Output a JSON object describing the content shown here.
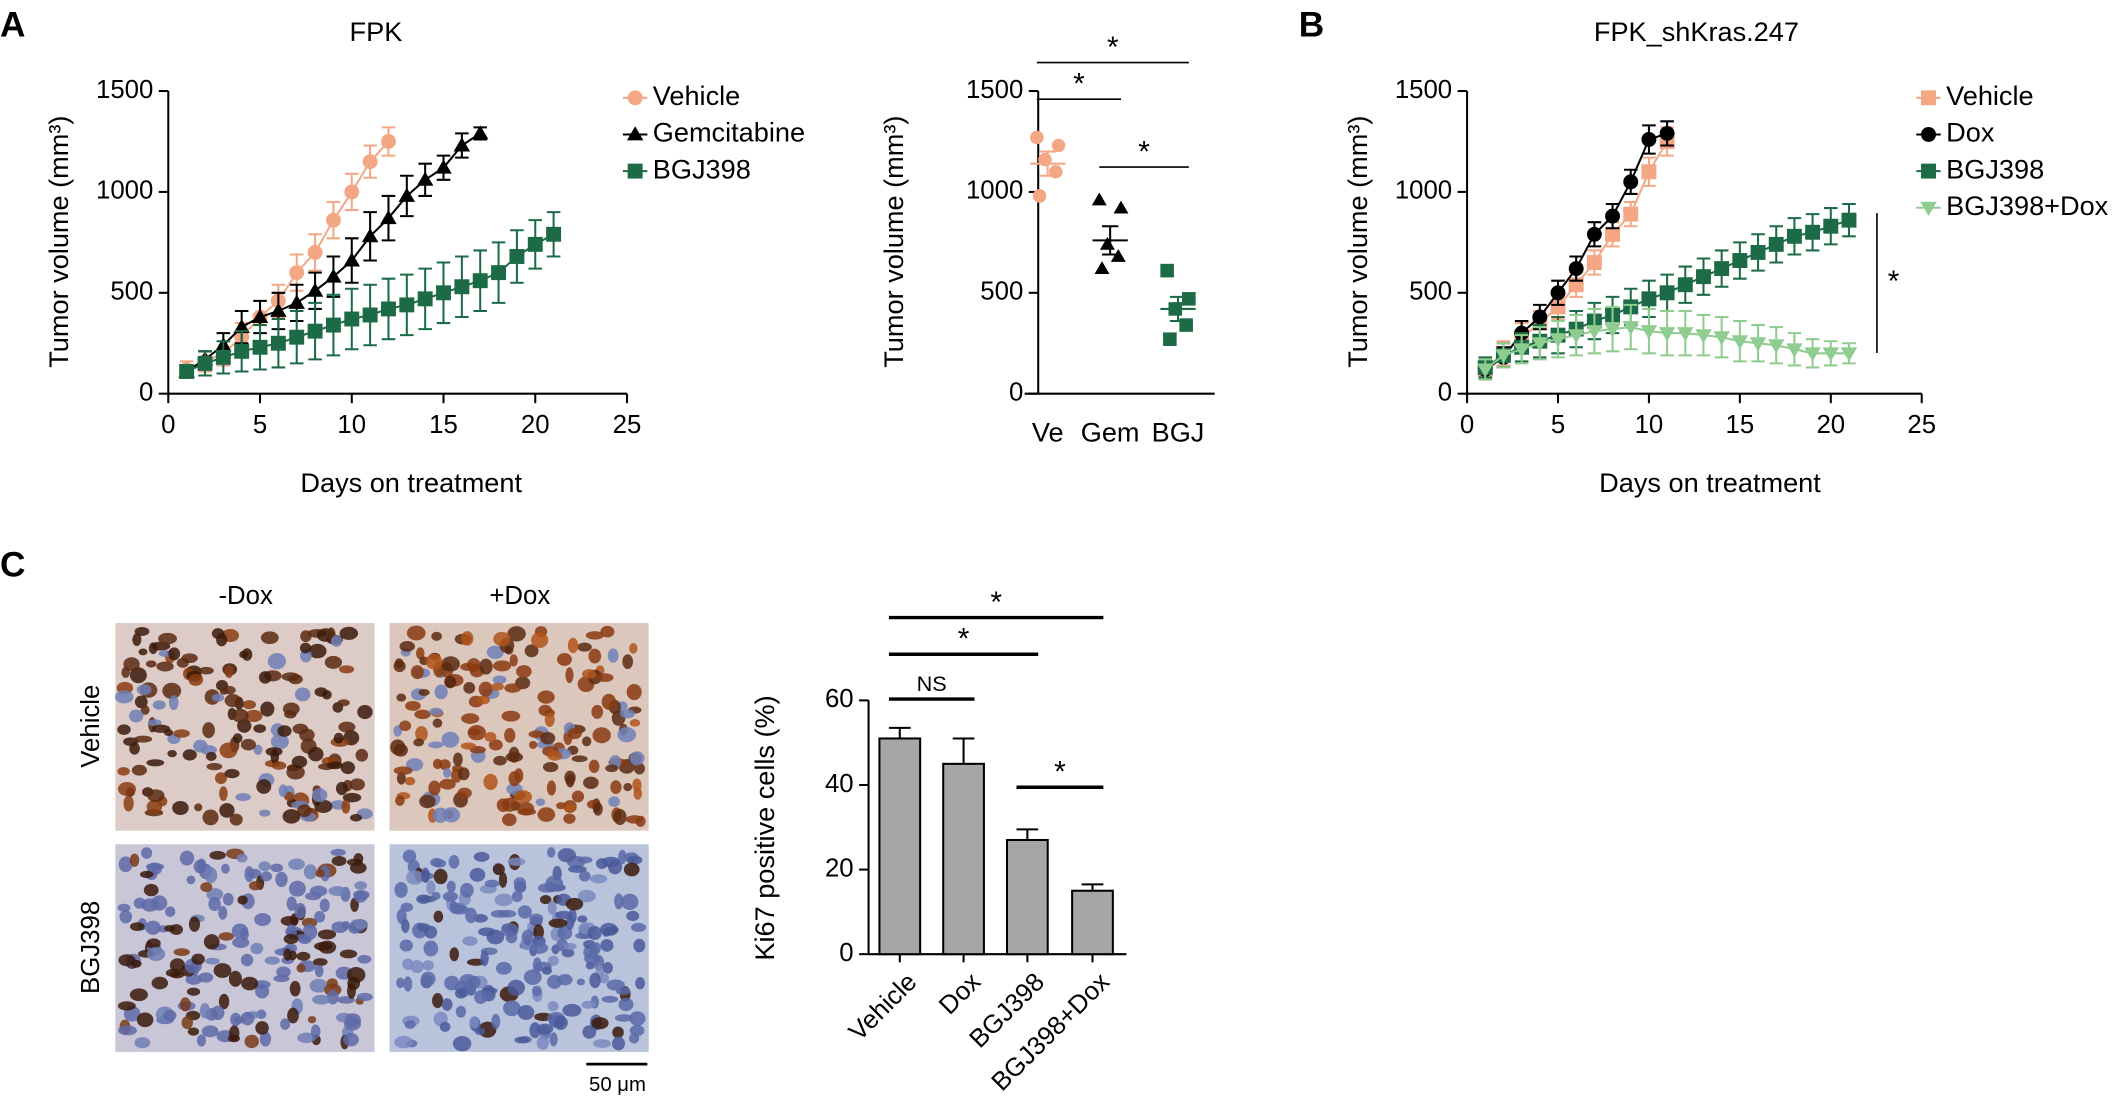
{
  "figure": {
    "panel_labels": [
      "A",
      "B",
      "C"
    ],
    "images": {
      "columns": [
        "-Dox",
        "+Dox"
      ],
      "rows": [
        "Vehicle",
        "BGJ398"
      ],
      "scale_bar": "50 μm"
    }
  },
  "chart_data": [
    {
      "type": "line",
      "title": "FPK",
      "xlabel": "Days on treatment",
      "ylabel": "Tumor volume (mm³)",
      "xlim": [
        0,
        25
      ],
      "xticks": [
        0,
        5,
        10,
        15,
        20,
        25
      ],
      "ylim": [
        0,
        1500
      ],
      "yticks": [
        0,
        500,
        1000,
        1500
      ],
      "x": [
        1,
        2,
        3,
        4,
        5,
        6,
        7,
        8,
        9,
        10,
        11,
        12,
        13,
        14,
        15,
        16,
        17,
        18,
        19,
        20,
        21
      ],
      "series": [
        {
          "name": "Vehicle",
          "color": "#f4a784",
          "marker": "circle",
          "values": [
            120,
            160,
            200,
            280,
            380,
            460,
            600,
            700,
            860,
            1000,
            1150,
            1250,
            null,
            null,
            null,
            null,
            null,
            null,
            null,
            null,
            null
          ],
          "errors": [
            40,
            50,
            60,
            70,
            80,
            80,
            90,
            90,
            90,
            90,
            80,
            70,
            null,
            null,
            null,
            null,
            null,
            null,
            null,
            null,
            null
          ]
        },
        {
          "name": "Gemcitabine",
          "color": "#000000",
          "marker": "triangle",
          "values": [
            110,
            170,
            240,
            330,
            380,
            410,
            450,
            510,
            580,
            660,
            780,
            870,
            980,
            1060,
            1120,
            1230,
            1290,
            null,
            null,
            null,
            null
          ],
          "errors": [
            30,
            40,
            60,
            80,
            80,
            90,
            90,
            90,
            100,
            110,
            120,
            110,
            100,
            80,
            60,
            60,
            30,
            null,
            null,
            null,
            null
          ]
        },
        {
          "name": "BGJ398",
          "color": "#1d6b46",
          "marker": "square",
          "values": [
            110,
            150,
            180,
            210,
            230,
            250,
            280,
            310,
            340,
            370,
            390,
            420,
            440,
            470,
            500,
            530,
            560,
            600,
            680,
            740,
            790
          ],
          "errors": [
            30,
            60,
            80,
            100,
            110,
            120,
            130,
            140,
            150,
            150,
            150,
            150,
            150,
            150,
            150,
            150,
            150,
            150,
            130,
            120,
            110
          ]
        }
      ]
    },
    {
      "type": "dotplot",
      "ylabel": "Tumor volume (mm³)",
      "ylim": [
        0,
        1500
      ],
      "yticks": [
        0,
        500,
        1000,
        1500
      ],
      "categories": [
        "Ve",
        "Gem",
        "BGJ"
      ],
      "colors": [
        "#f4a784",
        "#000000",
        "#1d6b46"
      ],
      "markers": [
        "circle",
        "triangle",
        "square"
      ],
      "points": [
        [
          1270,
          1230,
          1160,
          1100,
          980
        ],
        [
          960,
          920,
          740,
          680,
          620
        ],
        [
          610,
          470,
          420,
          340,
          270
        ]
      ],
      "means": [
        1140,
        760,
        420
      ],
      "sem": [
        60,
        70,
        60
      ],
      "comparisons": [
        {
          "between": [
            0,
            1
          ],
          "label": "*"
        },
        {
          "between": [
            0,
            2
          ],
          "label": "*"
        },
        {
          "between": [
            1,
            2
          ],
          "label": "*"
        }
      ]
    },
    {
      "type": "line",
      "title": "FPK_shKras.247",
      "xlabel": "Days on treatment",
      "ylabel": "Tumor volume (mm³)",
      "xlim": [
        0,
        25
      ],
      "xticks": [
        0,
        5,
        10,
        15,
        20,
        25
      ],
      "ylim": [
        0,
        1500
      ],
      "yticks": [
        0,
        500,
        1000,
        1500
      ],
      "x": [
        1,
        2,
        3,
        4,
        5,
        6,
        7,
        8,
        9,
        10,
        11,
        12,
        13,
        14,
        15,
        16,
        17,
        18,
        19,
        20,
        21
      ],
      "annotation": "*",
      "series": [
        {
          "name": "Vehicle",
          "color": "#f4a784",
          "marker": "square",
          "values": [
            120,
            200,
            280,
            350,
            430,
            540,
            650,
            790,
            890,
            1100,
            1250,
            null,
            null,
            null,
            null,
            null,
            null,
            null,
            null,
            null,
            null
          ],
          "errors": [
            50,
            60,
            70,
            60,
            60,
            60,
            60,
            60,
            60,
            70,
            70,
            null,
            null,
            null,
            null,
            null,
            null,
            null,
            null,
            null,
            null
          ]
        },
        {
          "name": "Dox",
          "color": "#000000",
          "marker": "circle",
          "values": [
            120,
            180,
            300,
            380,
            500,
            620,
            790,
            880,
            1050,
            1260,
            1290,
            null,
            null,
            null,
            null,
            null,
            null,
            null,
            null,
            null,
            null
          ],
          "errors": [
            40,
            50,
            60,
            60,
            60,
            60,
            60,
            60,
            60,
            70,
            60,
            null,
            null,
            null,
            null,
            null,
            null,
            null,
            null,
            null,
            null
          ]
        },
        {
          "name": "BGJ398",
          "color": "#1d6b46",
          "marker": "square",
          "values": [
            130,
            190,
            230,
            260,
            290,
            320,
            360,
            390,
            430,
            470,
            500,
            540,
            580,
            620,
            660,
            700,
            740,
            780,
            800,
            830,
            860
          ],
          "errors": [
            50,
            60,
            70,
            80,
            90,
            90,
            90,
            90,
            90,
            90,
            90,
            90,
            90,
            90,
            90,
            90,
            90,
            90,
            90,
            90,
            80
          ]
        },
        {
          "name": "BGJ398+Dox",
          "color": "#8fcc8f",
          "marker": "triangle-down",
          "values": [
            120,
            190,
            220,
            250,
            270,
            290,
            310,
            320,
            330,
            310,
            300,
            300,
            290,
            280,
            260,
            250,
            240,
            220,
            200,
            200,
            200
          ],
          "errors": [
            50,
            60,
            70,
            80,
            90,
            100,
            110,
            110,
            110,
            110,
            110,
            110,
            100,
            100,
            100,
            90,
            90,
            80,
            70,
            60,
            50
          ]
        }
      ]
    },
    {
      "type": "bar",
      "ylabel": "Ki67 positive cells (%)",
      "ylim": [
        0,
        60
      ],
      "yticks": [
        0,
        20,
        40,
        60
      ],
      "categories": [
        "Vehicle",
        "Dox",
        "BGJ398",
        "BGJ398+Dox"
      ],
      "values": [
        51,
        45,
        27,
        15
      ],
      "errors": [
        2.5,
        6,
        2.5,
        1.5
      ],
      "color": "#a6a6a6",
      "comparisons": [
        {
          "between": [
            0,
            1
          ],
          "label": "NS"
        },
        {
          "between": [
            0,
            2
          ],
          "label": "*"
        },
        {
          "between": [
            0,
            3
          ],
          "label": "*"
        },
        {
          "between": [
            2,
            3
          ],
          "label": "*"
        }
      ]
    }
  ]
}
